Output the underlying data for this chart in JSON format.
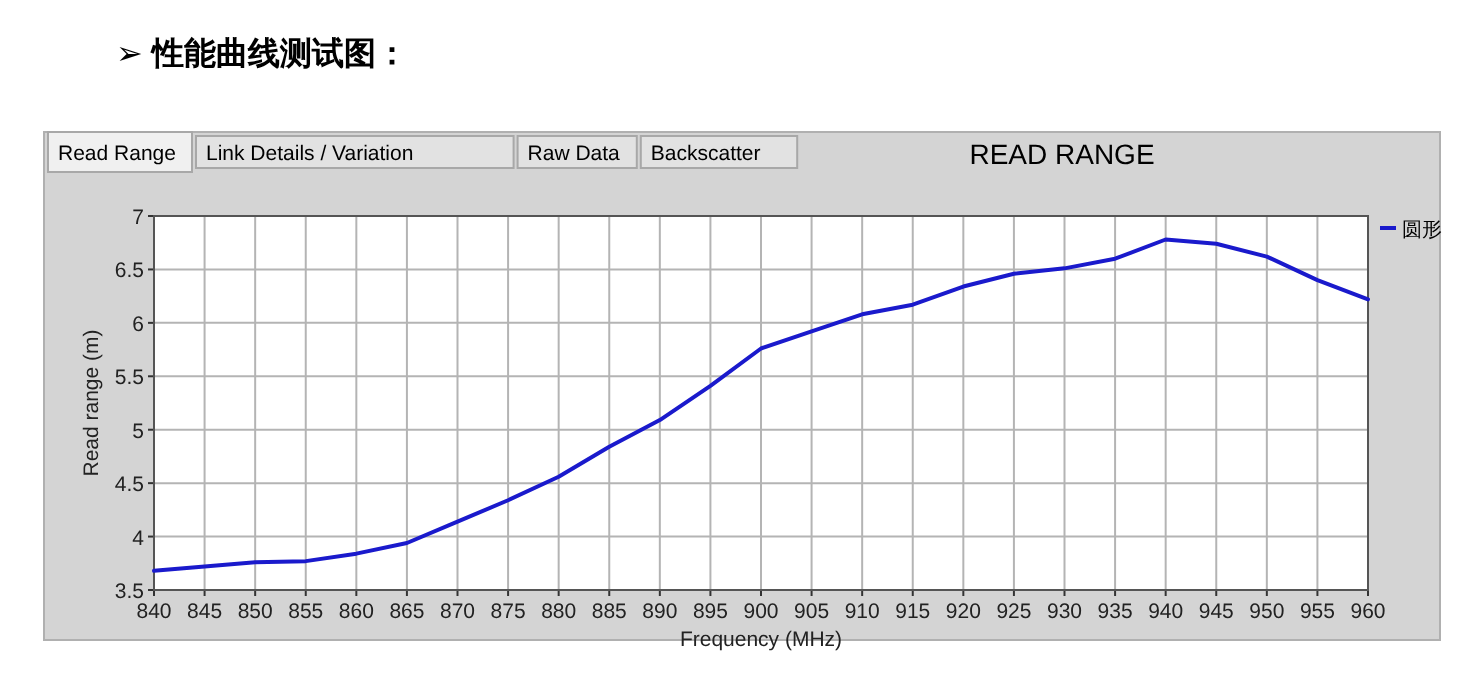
{
  "chart_data": {
    "type": "line",
    "title": "➢ 性能曲线测试图：",
    "subtitle": "READ RANGE",
    "xlabel": "Frequency (MHz)",
    "ylabel": "Read range (m)",
    "annotations": [
      "Read Range",
      "Link Details / Variation",
      "Raw Data",
      "Backscatter"
    ],
    "x": [
      840,
      845,
      850,
      855,
      860,
      865,
      870,
      875,
      880,
      885,
      890,
      895,
      900,
      905,
      910,
      915,
      920,
      925,
      930,
      935,
      940,
      945,
      950,
      955,
      960
    ],
    "series": [
      {
        "name": "圆形",
        "color": "#1a1acc",
        "values": [
          3.68,
          3.72,
          3.76,
          3.77,
          3.84,
          3.94,
          4.14,
          4.34,
          4.56,
          4.84,
          5.09,
          5.41,
          5.76,
          5.92,
          6.08,
          6.17,
          6.34,
          6.46,
          6.51,
          6.6,
          6.78,
          6.74,
          6.62,
          6.4,
          6.22
        ]
      }
    ],
    "xlim": [
      840,
      960
    ],
    "ylim": [
      3.5,
      7
    ],
    "xticks": [
      840,
      845,
      850,
      855,
      860,
      865,
      870,
      875,
      880,
      885,
      890,
      895,
      900,
      905,
      910,
      915,
      920,
      925,
      930,
      935,
      940,
      945,
      950,
      955,
      960
    ],
    "yticks": [
      {
        "value": 3.5,
        "label": "3.5"
      },
      4,
      {
        "value": 4.5,
        "label": "4.5"
      },
      5,
      {
        "value": 5.5,
        "label": "5.5"
      },
      6,
      {
        "value": 6.5,
        "label": "6.5"
      },
      7
    ],
    "grid": true,
    "legend": "top right",
    "line_style": "solid"
  }
}
